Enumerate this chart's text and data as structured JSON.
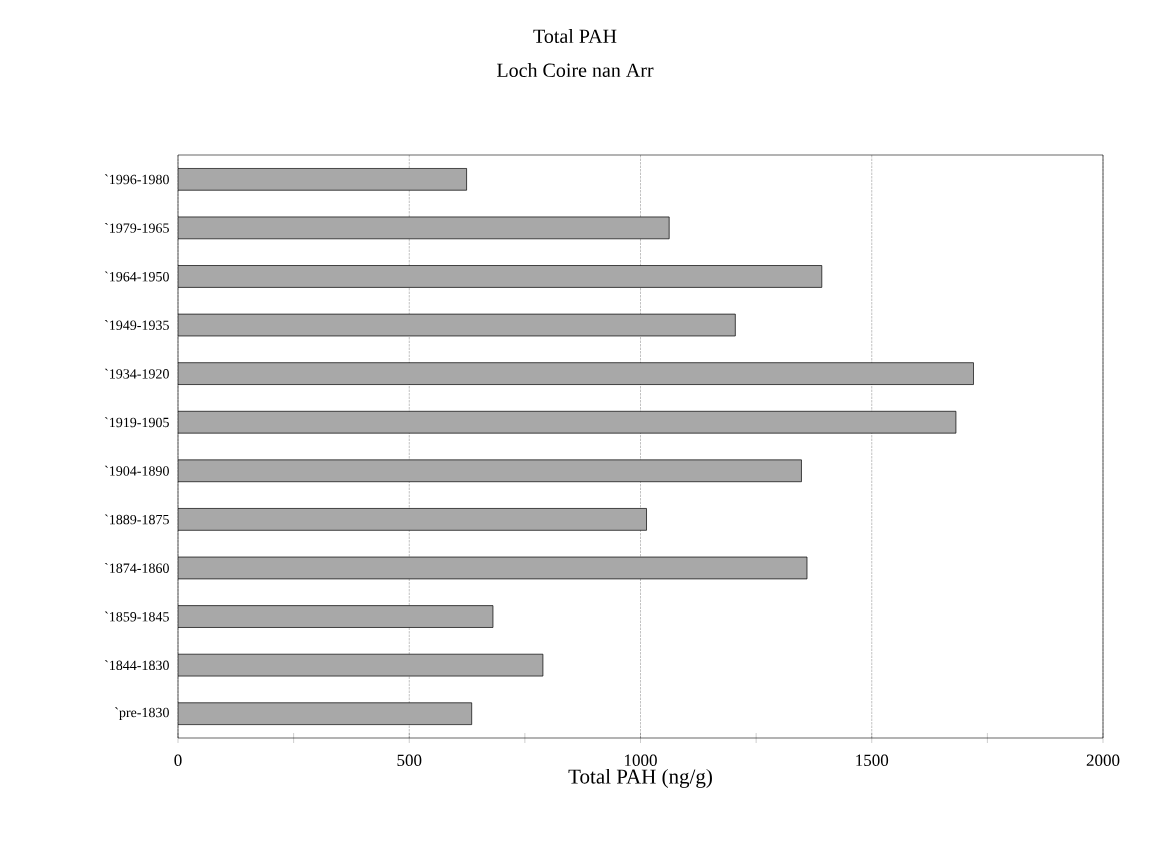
{
  "chart_data": {
    "type": "bar",
    "orientation": "horizontal",
    "title": "Total PAH",
    "subtitle": "Loch Coire nan Arr",
    "xlabel": "Total PAH (ng/g)",
    "categories": [
      "`1996-1980",
      "`1979-1965",
      "`1964-1950",
      "`1949-1935",
      "`1934-1920",
      "`1919-1905",
      "`1904-1890",
      "`1889-1875",
      "`1874-1860",
      "`1859-1845",
      "`1844-1830",
      "`pre-1830"
    ],
    "values": [
      624,
      1062,
      1392,
      1205,
      1720,
      1682,
      1348,
      1013,
      1360,
      681,
      789,
      635
    ],
    "color": "#a8a8a8",
    "xlim": [
      0,
      2000
    ],
    "xticks": [
      0,
      {
        "value": 250,
        "label": null
      },
      500,
      {
        "value": 750,
        "label": null
      },
      1000,
      {
        "value": 1250,
        "label": null
      },
      1500,
      {
        "value": 1750,
        "label": null
      },
      2000
    ],
    "grid": "x"
  }
}
